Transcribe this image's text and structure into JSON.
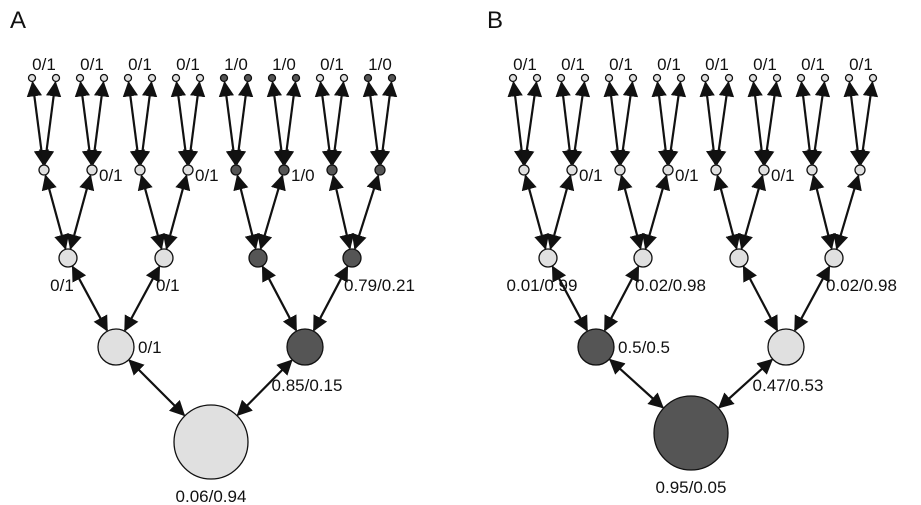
{
  "colors": {
    "light": "#e0e0e0",
    "dark": "#555555",
    "stroke": "#111111",
    "edge": "#111111"
  },
  "panels": [
    {
      "letter": "A",
      "level0": [
        {
          "label": "0/1",
          "shade": "light"
        },
        {
          "label": "",
          "shade": "light"
        },
        {
          "label": "0/1",
          "shade": "light"
        },
        {
          "label": "",
          "shade": "light"
        },
        {
          "label": "0/1",
          "shade": "light"
        },
        {
          "label": "",
          "shade": "light"
        },
        {
          "label": "0/1",
          "shade": "light"
        },
        {
          "label": "",
          "shade": "light"
        },
        {
          "label": "1/0",
          "shade": "dark"
        },
        {
          "label": "",
          "shade": "dark"
        },
        {
          "label": "1/0",
          "shade": "dark"
        },
        {
          "label": "",
          "shade": "dark"
        },
        {
          "label": "0/1",
          "shade": "light"
        },
        {
          "label": "",
          "shade": "light"
        },
        {
          "label": "1/0",
          "shade": "dark"
        },
        {
          "label": "",
          "shade": "dark"
        }
      ],
      "level1": [
        {
          "label": "",
          "shade": "light"
        },
        {
          "label": "0/1",
          "shade": "light"
        },
        {
          "label": "",
          "shade": "light"
        },
        {
          "label": "0/1",
          "shade": "light"
        },
        {
          "label": "",
          "shade": "dark"
        },
        {
          "label": "1/0",
          "shade": "dark"
        },
        {
          "label": "",
          "shade": "dark"
        },
        {
          "label": "",
          "shade": "dark"
        }
      ],
      "level2": [
        {
          "label": "0/1",
          "shade": "light"
        },
        {
          "label": "0/1",
          "shade": "light"
        },
        {
          "label": "",
          "shade": "dark"
        },
        {
          "label": "0.79/0.21",
          "shade": "dark"
        }
      ],
      "level3": [
        {
          "label": "0/1",
          "shade": "light"
        },
        {
          "label": "0.85/0.15",
          "shade": "dark"
        }
      ],
      "root": {
        "label": "0.06/0.94",
        "shade": "light"
      }
    },
    {
      "letter": "B",
      "level0": [
        {
          "label": "0/1",
          "shade": "light"
        },
        {
          "label": "",
          "shade": "light"
        },
        {
          "label": "0/1",
          "shade": "light"
        },
        {
          "label": "",
          "shade": "light"
        },
        {
          "label": "0/1",
          "shade": "light"
        },
        {
          "label": "",
          "shade": "light"
        },
        {
          "label": "0/1",
          "shade": "light"
        },
        {
          "label": "",
          "shade": "light"
        },
        {
          "label": "0/1",
          "shade": "light"
        },
        {
          "label": "",
          "shade": "light"
        },
        {
          "label": "0/1",
          "shade": "light"
        },
        {
          "label": "",
          "shade": "light"
        },
        {
          "label": "0/1",
          "shade": "light"
        },
        {
          "label": "",
          "shade": "light"
        },
        {
          "label": "0/1",
          "shade": "light"
        },
        {
          "label": "",
          "shade": "light"
        }
      ],
      "level1": [
        {
          "label": "",
          "shade": "light"
        },
        {
          "label": "0/1",
          "shade": "light"
        },
        {
          "label": "",
          "shade": "light"
        },
        {
          "label": "0/1",
          "shade": "light"
        },
        {
          "label": "",
          "shade": "light"
        },
        {
          "label": "0/1",
          "shade": "light"
        },
        {
          "label": "",
          "shade": "light"
        },
        {
          "label": "",
          "shade": "light"
        }
      ],
      "level2": [
        {
          "label": "0.01/0.99",
          "shade": "light"
        },
        {
          "label": "0.02/0.98",
          "shade": "light"
        },
        {
          "label": "",
          "shade": "light"
        },
        {
          "label": "0.02/0.98",
          "shade": "light"
        }
      ],
      "level3": [
        {
          "label": "0.5/0.5",
          "shade": "dark"
        },
        {
          "label": "0.47/0.53",
          "shade": "light"
        }
      ],
      "root": {
        "label": "0.95/0.05",
        "shade": "dark"
      }
    }
  ]
}
